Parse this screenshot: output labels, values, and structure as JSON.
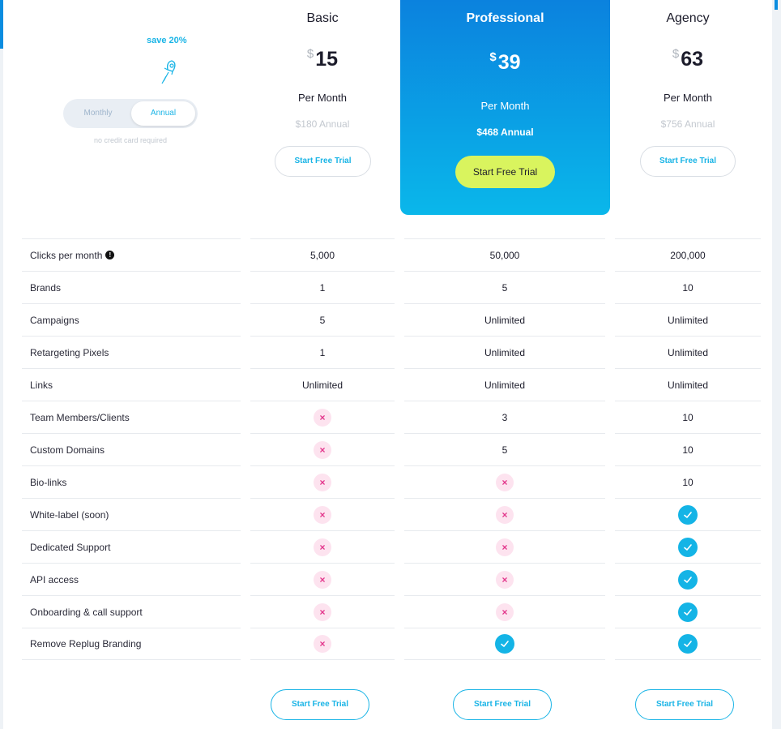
{
  "toggle": {
    "save_label": "save 20%",
    "monthly_label": "Monthly",
    "annual_label": "Annual",
    "no_card_label": "no credit card required",
    "selected": "Annual",
    "icon": "rocket-icon"
  },
  "plans": {
    "basic": {
      "name": "Basic",
      "currency": "$",
      "price": "15",
      "per": "Per Month",
      "annual": "$180 Annual",
      "cta": "Start Free Trial"
    },
    "pro": {
      "name": "Professional",
      "currency": "$",
      "price": "39",
      "per": "Per Month",
      "annual": "$468 Annual",
      "cta": "Start Free Trial"
    },
    "agency": {
      "name": "Agency",
      "currency": "$",
      "price": "63",
      "per": "Per Month",
      "annual": "$756 Annual",
      "cta": "Start Free Trial"
    }
  },
  "features": [
    {
      "label": "Clicks per month",
      "info": "!",
      "basic": "5,000",
      "pro": "50,000",
      "agency": "200,000"
    },
    {
      "label": "Brands",
      "basic": "1",
      "pro": "5",
      "agency": "10"
    },
    {
      "label": "Campaigns",
      "basic": "5",
      "pro": "Unlimited",
      "agency": "Unlimited"
    },
    {
      "label": "Retargeting Pixels",
      "basic": "1",
      "pro": "Unlimited",
      "agency": "Unlimited"
    },
    {
      "label": "Links",
      "basic": "Unlimited",
      "pro": "Unlimited",
      "agency": "Unlimited"
    },
    {
      "label": "Team Members/Clients",
      "basic": "x",
      "pro": "3",
      "agency": "10"
    },
    {
      "label": "Custom Domains",
      "basic": "x",
      "pro": "5",
      "agency": "10"
    },
    {
      "label": "Bio-links",
      "basic": "x",
      "pro": "x",
      "agency": "10"
    },
    {
      "label": "White-label (soon)",
      "basic": "x",
      "pro": "x",
      "agency": "check"
    },
    {
      "label": "Dedicated Support",
      "basic": "x",
      "pro": "x",
      "agency": "check"
    },
    {
      "label": "API access",
      "basic": "x",
      "pro": "x",
      "agency": "check"
    },
    {
      "label": "Onboarding & call support",
      "basic": "x",
      "pro": "x",
      "agency": "check"
    },
    {
      "label": "Remove Replug Branding",
      "basic": "x",
      "pro": "check",
      "agency": "check"
    }
  ],
  "bottom_cta": {
    "basic": "Start Free Trial",
    "pro": "Start Free Trial",
    "agency": "Start Free Trial"
  },
  "colors": {
    "accent": "#19b4e6",
    "pro_gradient_top": "#0b82de",
    "pro_gradient_bottom": "#0ab7ea",
    "cta_lime": "#d9f45e",
    "cross": "#e3368c",
    "cross_bg": "#fde3ef"
  }
}
